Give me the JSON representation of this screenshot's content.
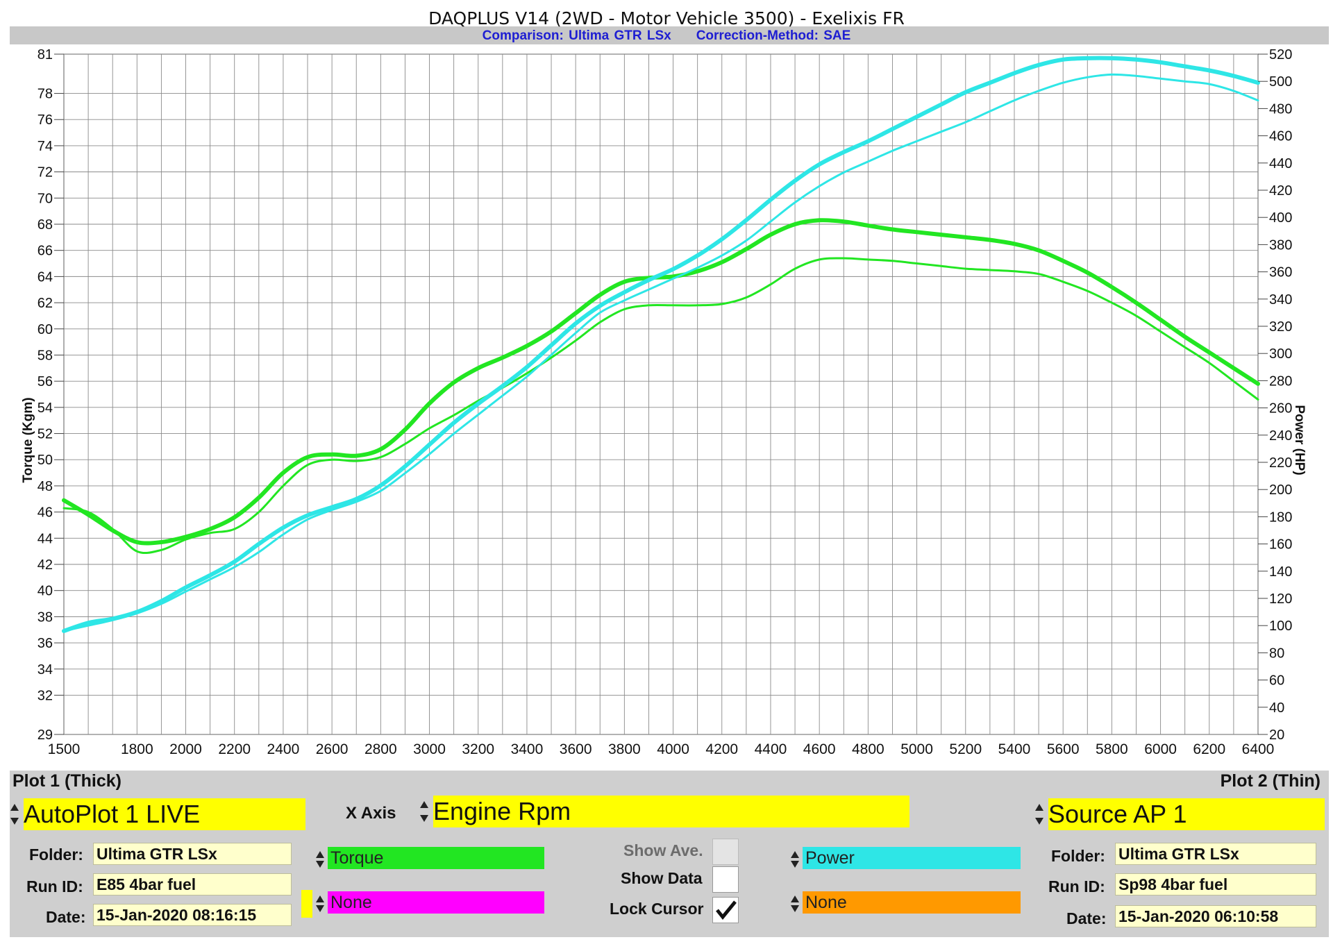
{
  "header": {
    "title": "DAQPLUS V14 (2WD - Motor Vehicle 3500) - Exelixis FR",
    "comparison": "Comparison: Ultima GTR LSx",
    "correction": "Correction-Method: SAE"
  },
  "chart_data": {
    "type": "line",
    "xlabel": "",
    "ylabel": "Torque (Kgm)",
    "y2label": "Power (HP)",
    "xlim": [
      1500,
      6400
    ],
    "ylim": [
      29,
      81
    ],
    "y2lim": [
      20,
      520
    ],
    "grid": true,
    "x_ticks": [
      1500,
      1800,
      2000,
      2200,
      2400,
      2600,
      2800,
      3000,
      3200,
      3400,
      3600,
      3800,
      4000,
      4200,
      4400,
      4600,
      4800,
      5000,
      5200,
      5400,
      5600,
      5800,
      6000,
      6200,
      6400
    ],
    "y_ticks": [
      29,
      32,
      34,
      36,
      38,
      40,
      42,
      44,
      46,
      48,
      50,
      52,
      54,
      56,
      58,
      60,
      62,
      64,
      66,
      68,
      70,
      72,
      74,
      76,
      78,
      81
    ],
    "y2_ticks": [
      20,
      40,
      60,
      80,
      100,
      120,
      140,
      160,
      180,
      200,
      220,
      240,
      260,
      280,
      300,
      320,
      340,
      360,
      380,
      400,
      420,
      440,
      460,
      480,
      500,
      520
    ],
    "x": [
      1500,
      1600,
      1700,
      1800,
      1900,
      2000,
      2100,
      2200,
      2300,
      2400,
      2500,
      2600,
      2700,
      2800,
      2900,
      3000,
      3100,
      3200,
      3300,
      3400,
      3500,
      3600,
      3700,
      3800,
      3900,
      4000,
      4100,
      4200,
      4300,
      4400,
      4500,
      4600,
      4700,
      4800,
      4900,
      5000,
      5100,
      5200,
      5300,
      5400,
      5500,
      5600,
      5700,
      5800,
      5900,
      6000,
      6100,
      6200,
      6300,
      6400
    ],
    "series": [
      {
        "axis": "left",
        "color": "#22e622",
        "width": 6,
        "values": [
          46.9,
          45.8,
          44.6,
          43.7,
          43.7,
          44.1,
          44.7,
          45.6,
          47.1,
          49.0,
          50.2,
          50.4,
          50.3,
          50.8,
          52.3,
          54.3,
          55.9,
          57.0,
          57.8,
          58.7,
          59.8,
          61.2,
          62.6,
          63.6,
          63.9,
          64.0,
          64.4,
          65.1,
          66.1,
          67.2,
          68.0,
          68.3,
          68.2,
          67.9,
          67.6,
          67.4,
          67.2,
          67.0,
          66.8,
          66.5,
          66.0,
          65.2,
          64.3,
          63.2,
          62.0,
          60.7,
          59.4,
          58.2,
          57.0,
          55.8
        ]
      },
      {
        "axis": "left",
        "color": "#22e622",
        "width": 3,
        "values": [
          46.3,
          46.0,
          44.7,
          43.0,
          43.1,
          43.9,
          44.4,
          44.7,
          46.0,
          48.0,
          49.6,
          50.0,
          49.9,
          50.2,
          51.2,
          52.4,
          53.4,
          54.5,
          55.5,
          56.6,
          57.8,
          59.1,
          60.5,
          61.5,
          61.8,
          61.8,
          61.8,
          61.9,
          62.4,
          63.4,
          64.6,
          65.3,
          65.4,
          65.3,
          65.2,
          65.0,
          64.8,
          64.6,
          64.5,
          64.4,
          64.2,
          63.6,
          62.9,
          62.0,
          61.0,
          59.8,
          58.6,
          57.4,
          56.0,
          54.6
        ]
      },
      {
        "axis": "right",
        "color": "#2ee6e6",
        "width": 6,
        "values": [
          96,
          102,
          105,
          110,
          118,
          128,
          137,
          147,
          160,
          172,
          181,
          187,
          193,
          203,
          217,
          233,
          249,
          263,
          276,
          290,
          306,
          322,
          335,
          345,
          354,
          362,
          372,
          384,
          398,
          413,
          427,
          439,
          448,
          456,
          465,
          474,
          483,
          492,
          499,
          506,
          512,
          516,
          517,
          517,
          516,
          514,
          511,
          508,
          504,
          499
        ]
      },
      {
        "axis": "right",
        "color": "#2ee6e6",
        "width": 3,
        "values": [
          96,
          100,
          104,
          109,
          116,
          125,
          134,
          143,
          154,
          167,
          178,
          185,
          191,
          199,
          212,
          226,
          241,
          255,
          269,
          283,
          299,
          315,
          330,
          339,
          347,
          355,
          363,
          372,
          383,
          397,
          411,
          423,
          433,
          441,
          449,
          456,
          463,
          470,
          478,
          486,
          493,
          499,
          503,
          505,
          504,
          502,
          500,
          498,
          493,
          486
        ]
      }
    ]
  },
  "bottom_panel": {
    "plot1_label": "Plot 1 (Thick)",
    "plot2_label": "Plot 2 (Thin)",
    "plot1_source": "AutoPlot 1 LIVE",
    "plot2_source": "Source AP 1",
    "xaxis_label": "X Axis",
    "xaxis_value": "Engine Rpm",
    "folder_label": "Folder:",
    "runid_label": "Run ID:",
    "date_label": "Date:",
    "plot1_folder": "Ultima GTR LSx",
    "plot1_runid": "E85 4bar fuel",
    "plot1_date": "15-Jan-2020 08:16:15",
    "plot2_folder": "Ultima GTR LSx",
    "plot2_runid": "Sp98 4bar fuel",
    "plot2_date": "15-Jan-2020 06:10:58",
    "channel_1": "Torque",
    "channel_2": "None",
    "channel_3": "Power",
    "channel_4": "None",
    "show_ave_label": "Show Ave.",
    "show_data_label": "Show Data",
    "lock_cursor_label": "Lock Cursor",
    "colors": {
      "torque": "#22e622",
      "none1": "#ff00ff",
      "power": "#2ee6e6",
      "none2": "#ff9900",
      "yellow": "#ffff00"
    }
  }
}
